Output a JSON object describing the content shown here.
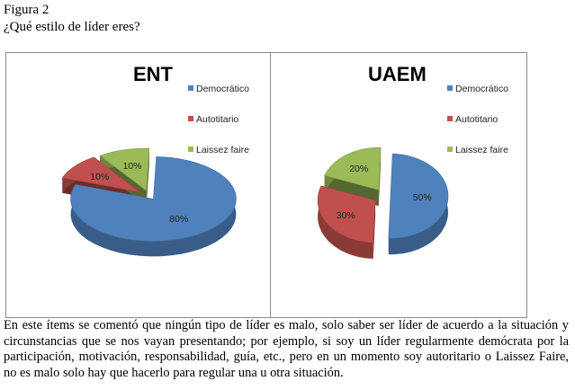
{
  "figure": {
    "label": "Figura 2",
    "question": "¿Qué estilo de líder eres?"
  },
  "chart_data": [
    {
      "type": "pie",
      "title": "ENT",
      "legend_position": "right",
      "categories": [
        "Democrático",
        "Autotitario",
        "Laissez faire"
      ],
      "values": [
        80,
        10,
        10
      ],
      "data_labels": [
        "80%",
        "10%",
        "10%"
      ],
      "colors": [
        "#4f81bd",
        "#c0504d",
        "#9bbb59"
      ],
      "exploded": [
        true,
        true,
        true
      ]
    },
    {
      "type": "pie",
      "title": "UAEM",
      "legend_position": "right",
      "categories": [
        "Democrático",
        "Autotitario",
        "Laissez faire"
      ],
      "values": [
        50,
        30,
        20
      ],
      "data_labels": [
        "50%",
        "30%",
        "20%"
      ],
      "colors": [
        "#4f81bd",
        "#c0504d",
        "#9bbb59"
      ],
      "exploded": [
        true,
        true,
        true
      ]
    }
  ],
  "description": "En este ítems se comentó que ningún tipo de líder es malo, solo saber ser líder de acuerdo a la situación y circunstancias que se nos vayan presentando; por ejemplo, si soy un líder regularmente demócrata por la participación, motivación, responsabilidad, guía, etc., pero en un momento soy autoritario o Laissez Faire, no es malo solo hay que hacerlo para regular una u otra situación."
}
